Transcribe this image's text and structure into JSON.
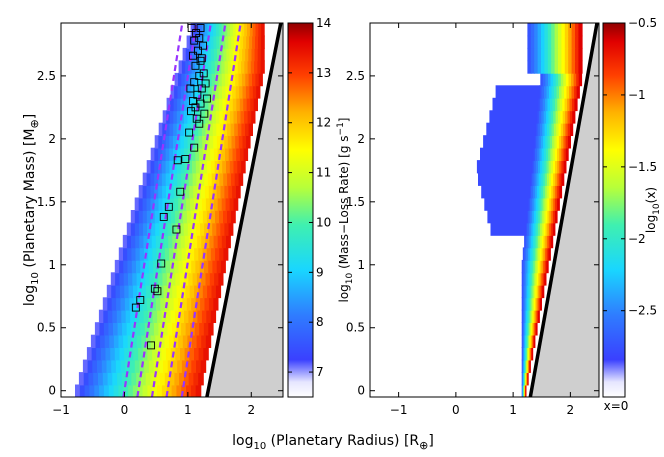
{
  "chart_data": [
    {
      "type": "heatmap",
      "panel": "left",
      "xlabel_main": "log",
      "xlabel_sub": "10",
      "xlabel_rest": " (Planetary Radius) [R",
      "xlabel_sym": "⊕",
      "xlabel_end": "]",
      "ylabel_main": "log",
      "ylabel_sub": "10",
      "ylabel_rest": " (Planetary Mass) [M",
      "ylabel_sym": "⊕",
      "ylabel_end": "]",
      "xlim": [
        -1,
        2.5
      ],
      "ylim": [
        -0.05,
        2.92
      ],
      "x_ticks": [
        -1,
        0,
        1,
        2
      ],
      "x_tick_labels": [
        "−1",
        "0",
        "1",
        "2"
      ],
      "y_ticks": [
        0,
        0.5,
        1,
        1.5,
        2,
        2.5
      ],
      "y_tick_labels": [
        "0",
        "0.5",
        "1",
        "1.5",
        "2",
        "2.5"
      ],
      "colorbar": {
        "label_main": "log",
        "label_sub": "10",
        "label_rest": " (Mass−Loss Rate) [g s",
        "label_sup": "−1",
        "label_end": "]",
        "range": [
          6.5,
          14
        ],
        "ticks": [
          7,
          8,
          9,
          10,
          11,
          12,
          13,
          14
        ],
        "tick_labels": [
          "7",
          "8",
          "9",
          "10",
          "11",
          "12",
          "13",
          "14"
        ]
      },
      "dashed_lines": [
        {
          "x0": 0.0,
          "slope": 3.2
        },
        {
          "x0": 0.22,
          "slope": 3.2
        },
        {
          "x0": 0.45,
          "slope": 3.2
        },
        {
          "x0": 0.68,
          "slope": 3.2
        },
        {
          "x0": 0.92,
          "slope": 3.2
        }
      ],
      "black_line": {
        "x0": 1.32,
        "slope": 2.55
      },
      "planets": [
        {
          "x": 0.18,
          "y": 0.66
        },
        {
          "x": 0.25,
          "y": 0.72
        },
        {
          "x": 0.42,
          "y": 0.36
        },
        {
          "x": 0.48,
          "y": 0.81
        },
        {
          "x": 0.52,
          "y": 0.79
        },
        {
          "x": 0.58,
          "y": 1.01
        },
        {
          "x": 0.62,
          "y": 1.38
        },
        {
          "x": 0.7,
          "y": 1.46
        },
        {
          "x": 0.82,
          "y": 1.28
        },
        {
          "x": 0.88,
          "y": 1.58
        },
        {
          "x": 0.84,
          "y": 1.83
        },
        {
          "x": 0.96,
          "y": 1.84
        },
        {
          "x": 1.02,
          "y": 2.05
        },
        {
          "x": 1.1,
          "y": 1.93
        },
        {
          "x": 1.05,
          "y": 2.22
        },
        {
          "x": 1.12,
          "y": 2.25
        },
        {
          "x": 1.08,
          "y": 2.3
        },
        {
          "x": 1.18,
          "y": 2.12
        },
        {
          "x": 1.2,
          "y": 2.28
        },
        {
          "x": 1.15,
          "y": 2.35
        },
        {
          "x": 1.22,
          "y": 2.4
        },
        {
          "x": 1.1,
          "y": 2.45
        },
        {
          "x": 1.18,
          "y": 2.5
        },
        {
          "x": 1.25,
          "y": 2.52
        },
        {
          "x": 1.12,
          "y": 2.58
        },
        {
          "x": 1.2,
          "y": 2.62
        },
        {
          "x": 1.08,
          "y": 2.66
        },
        {
          "x": 1.16,
          "y": 2.7
        },
        {
          "x": 1.24,
          "y": 2.74
        },
        {
          "x": 1.1,
          "y": 2.78
        },
        {
          "x": 1.18,
          "y": 2.8
        },
        {
          "x": 1.13,
          "y": 2.84
        },
        {
          "x": 1.06,
          "y": 2.88
        },
        {
          "x": 1.2,
          "y": 2.88
        },
        {
          "x": 1.28,
          "y": 2.44
        },
        {
          "x": 1.3,
          "y": 2.32
        },
        {
          "x": 1.14,
          "y": 2.16
        },
        {
          "x": 1.26,
          "y": 2.2
        },
        {
          "x": 1.04,
          "y": 2.4
        },
        {
          "x": 1.22,
          "y": 2.64
        }
      ]
    },
    {
      "type": "heatmap",
      "panel": "right",
      "xlim": [
        -1.5,
        2.5
      ],
      "ylim": [
        -0.05,
        2.92
      ],
      "x_ticks": [
        -1,
        0,
        1,
        2
      ],
      "x_tick_labels": [
        "−1",
        "0",
        "1",
        "2"
      ],
      "y_ticks": [
        0,
        0.5,
        1,
        1.5,
        2,
        2.5
      ],
      "y_tick_labels": [
        "0",
        "0.5",
        "1",
        "1.5",
        "2",
        "2.5"
      ],
      "colorbar": {
        "label_main": "log",
        "label_sub": "10",
        "label_rest": "(x)",
        "range": [
          -3.1,
          -0.5
        ],
        "ticks": [
          -2.5,
          -2,
          -1.5,
          -1,
          -0.5
        ],
        "tick_labels": [
          "−2.5",
          "−2",
          "−1.5",
          "−1",
          "−0.5"
        ],
        "bottom_label": "x=0"
      },
      "black_line": {
        "x0": 1.32,
        "slope": 2.55
      }
    }
  ]
}
